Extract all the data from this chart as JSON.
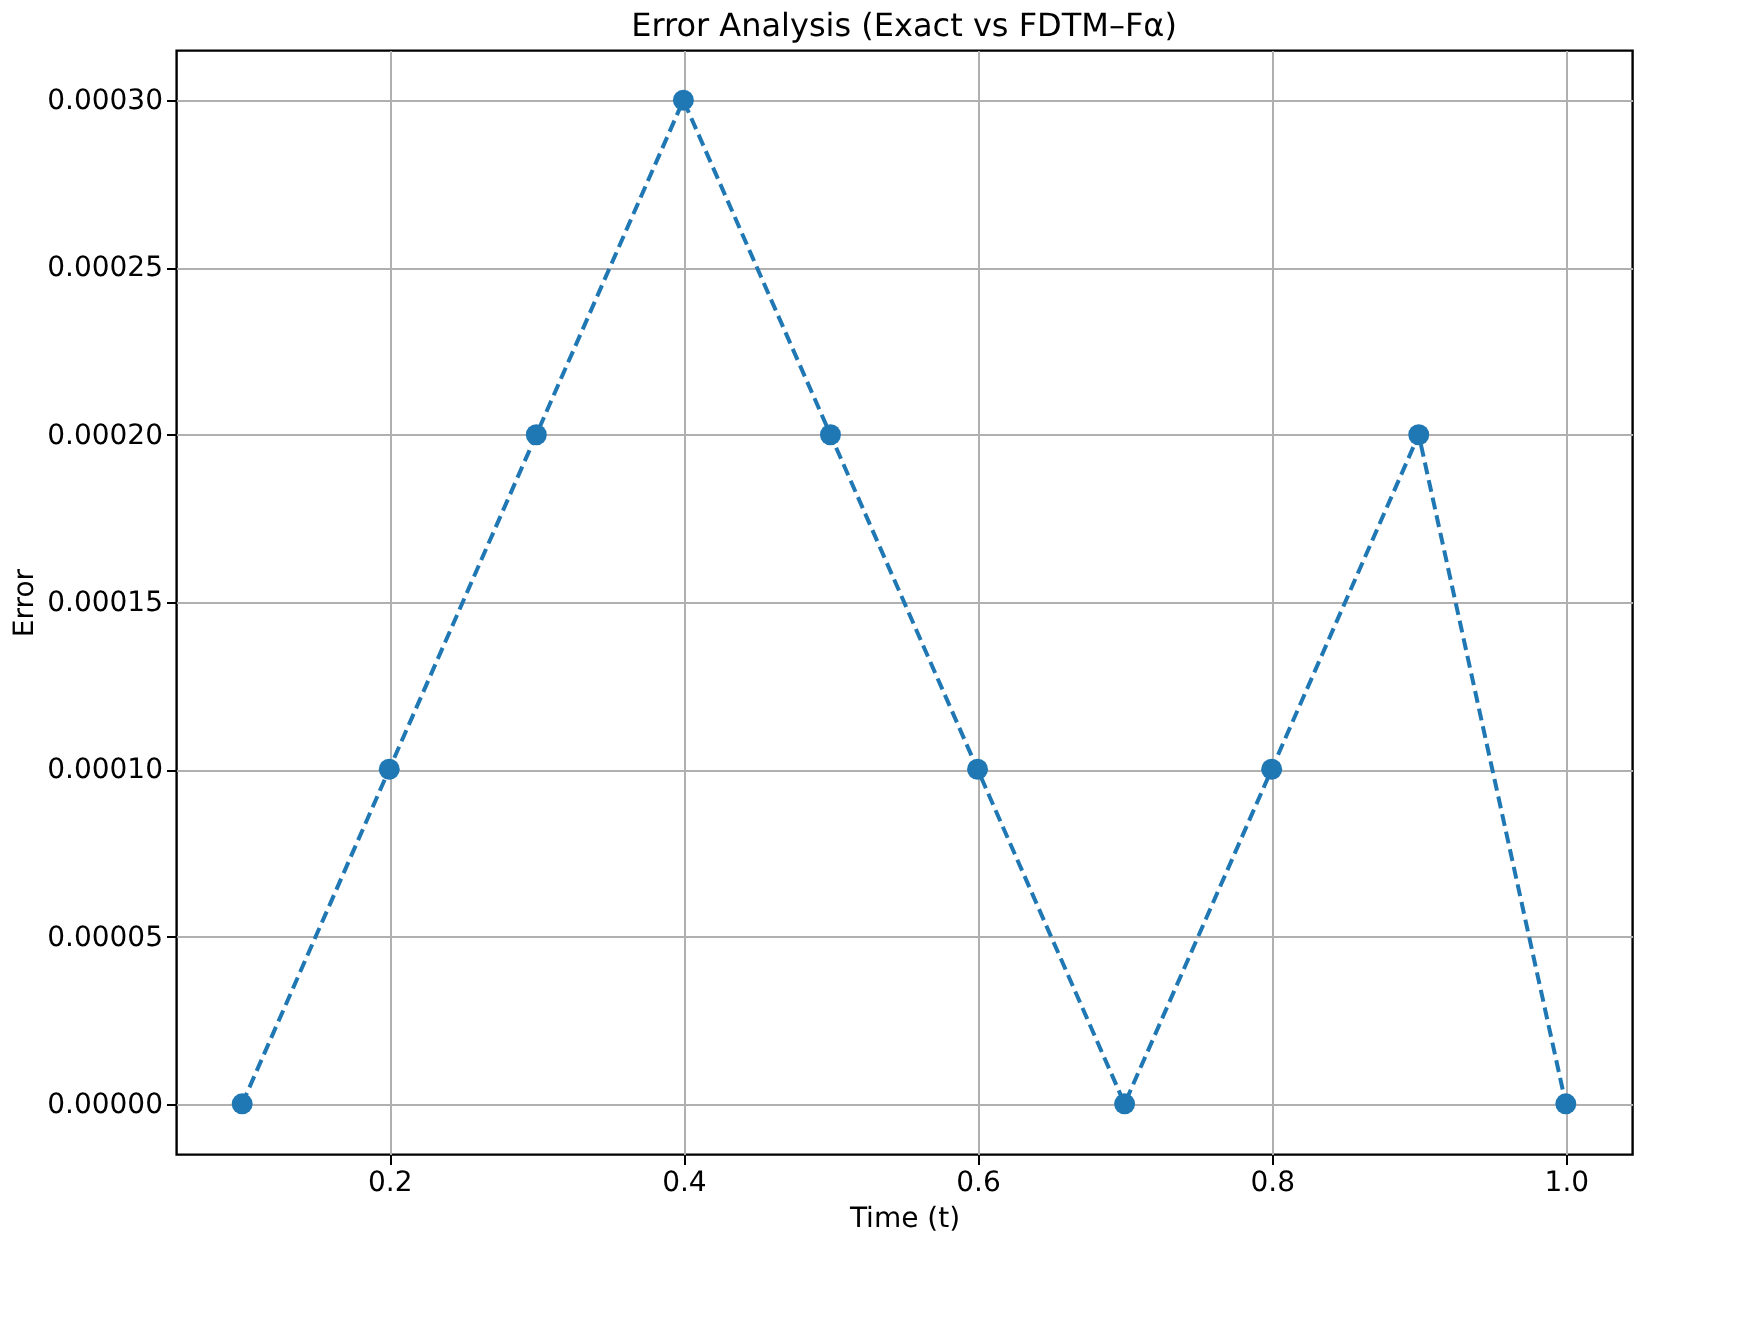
{
  "chart_data": {
    "type": "line",
    "title": "Error Analysis (Exact vs FDTM–Fα)",
    "xlabel": "Time (t)",
    "ylabel": "Error",
    "x": [
      0.1,
      0.2,
      0.3,
      0.4,
      0.5,
      0.6,
      0.7,
      0.8,
      0.9,
      1.0
    ],
    "series": [
      {
        "color": "#1f77b4",
        "values": [
          0.0,
          0.0001,
          0.0002,
          0.0003,
          0.0002,
          0.0001,
          0.0,
          0.0001,
          0.0002,
          0.0
        ]
      }
    ],
    "xlim": [
      0.055,
      1.045
    ],
    "ylim": [
      -1.5e-05,
      0.000315
    ],
    "xticks": [
      0.2,
      0.4,
      0.6,
      0.8,
      {
        "value": 1.0,
        "label": "1.0"
      }
    ],
    "yticks": [
      {
        "value": 0,
        "label": "0.00000"
      },
      {
        "value": 5e-05,
        "label": "0.00005"
      },
      {
        "value": 0.0001,
        "label": "0.00010"
      },
      {
        "value": 0.00015,
        "label": "0.00015"
      },
      {
        "value": 0.0002,
        "label": "0.00020"
      },
      {
        "value": 0.00025,
        "label": "0.00025"
      },
      {
        "value": 0.0003,
        "label": "0.00030"
      }
    ],
    "grid": true,
    "marker": "circle",
    "line_style": "dashed"
  }
}
